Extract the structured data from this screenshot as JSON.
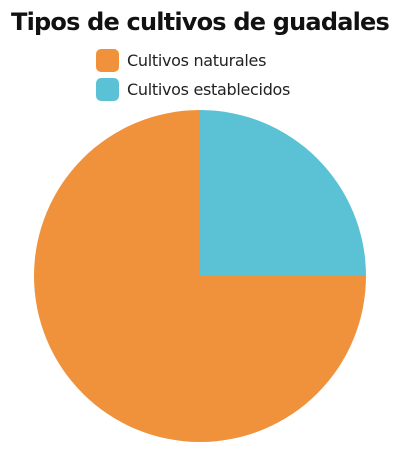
{
  "chart_data": {
    "type": "pie",
    "title": "Tipos de cultivos de guadales",
    "legend_position": "top",
    "slices": [
      {
        "name": "Cultivos naturales",
        "value": 75,
        "color": "#f0923c"
      },
      {
        "name": "Cultivos establecidos",
        "value": 25,
        "color": "#5bc2d6"
      }
    ]
  }
}
